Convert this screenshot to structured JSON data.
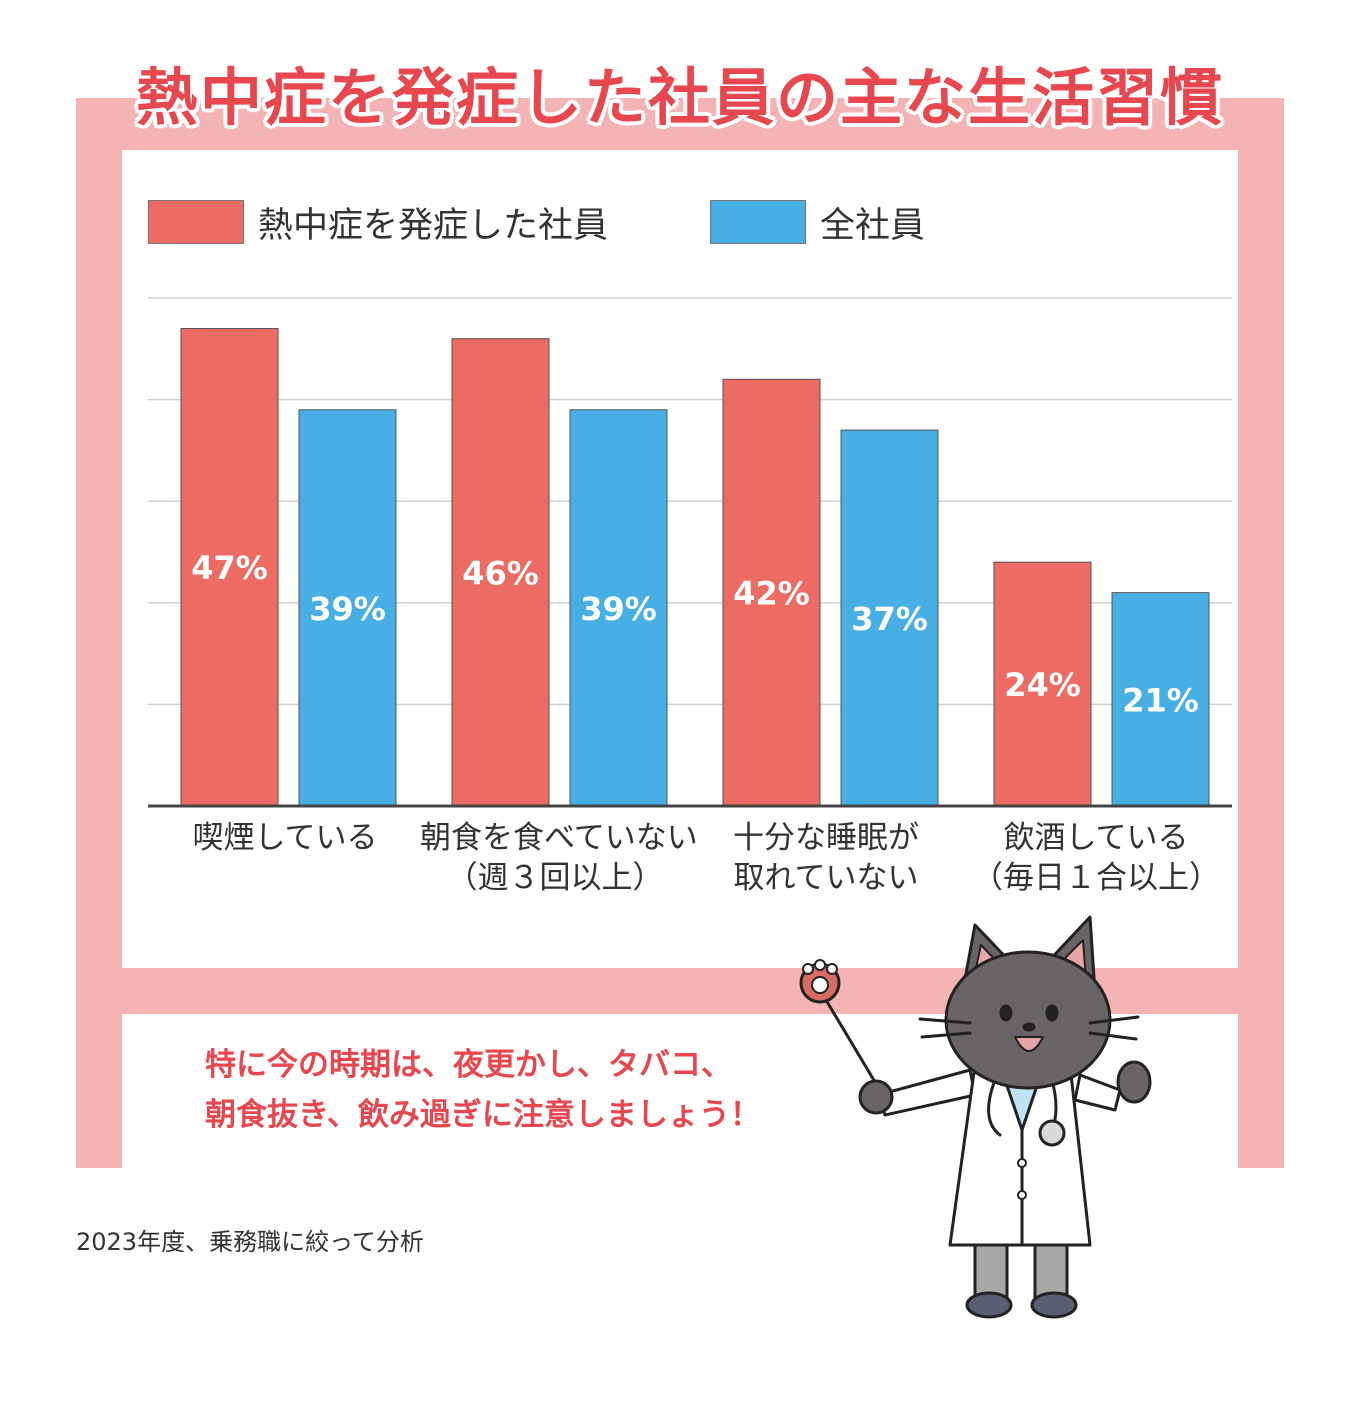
{
  "chart_data": {
    "type": "bar",
    "title": "熱中症を発症した社員の主な生活習慣",
    "categories": [
      [
        "喫煙している"
      ],
      [
        "朝食を食べていない",
        "（週３回以上）"
      ],
      [
        "十分な睡眠が",
        "取れていない"
      ],
      [
        "飲酒している",
        "（毎日１合以上）"
      ]
    ],
    "series": [
      {
        "name": "熱中症を発症した社員",
        "values": [
          47,
          46,
          42,
          24
        ],
        "labels": [
          "47%",
          "46%",
          "42%",
          "24%"
        ]
      },
      {
        "name": "全社員",
        "values": [
          39,
          39,
          37,
          21
        ],
        "labels": [
          "39%",
          "39%",
          "37%",
          "21%"
        ]
      }
    ],
    "ylim": [
      0,
      50
    ],
    "grid": true,
    "legend": "top-left",
    "colors": {
      "series0": "#ec6c64",
      "series1": "#47afe3",
      "frame": "#f4b3b5",
      "title": "#e8474f"
    }
  },
  "message": {
    "line1": "特に今の時期は、夜更かし、タバコ、",
    "line2": "朝食抜き、飲み過ぎに注意しましょう！"
  },
  "footnote": "2023年度、乗務職に絞って分析",
  "illustration": {
    "icon": "cat-doctor-illustration"
  }
}
